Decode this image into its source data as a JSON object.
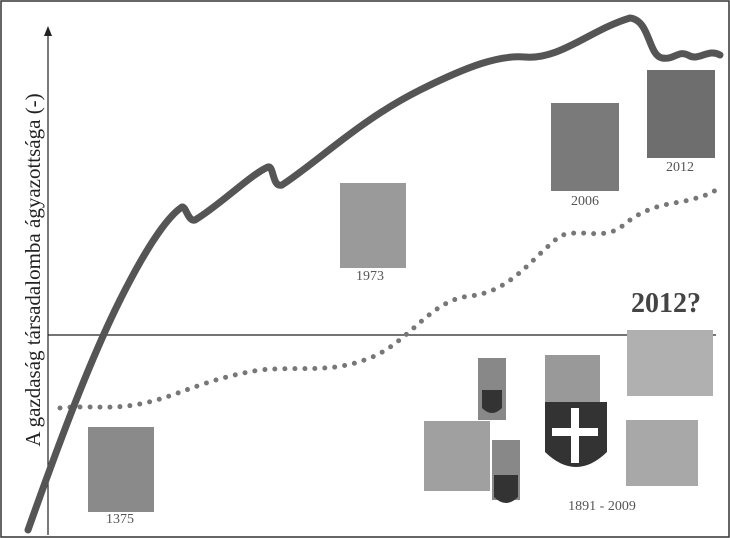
{
  "axis_label": "A gazdaság társadalomba ágyazottsága (-)",
  "labels": [
    "1375",
    "1973",
    "2006",
    "2012",
    "2012?",
    "1891 - 2009"
  ]
}
